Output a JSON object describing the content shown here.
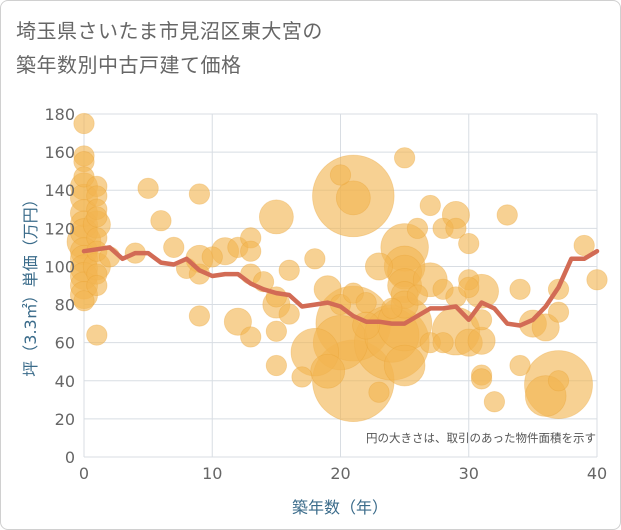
{
  "title": {
    "line1": "埼玉県さいたま市見沼区東大宮の",
    "line2": "築年数別中古戸建て価格"
  },
  "chart_data": {
    "type": "scatter",
    "xlabel": "築年数（年）",
    "ylabel": "坪（3.3㎡）単価（万円）",
    "note": "円の大きさは、取引のあった物件面積を示す",
    "xlim": [
      0,
      40
    ],
    "ylim": [
      0,
      180
    ],
    "x_ticks": [
      "0",
      "10",
      "20",
      "30",
      "40"
    ],
    "y_ticks": [
      "0",
      "20",
      "40",
      "60",
      "80",
      "100",
      "120",
      "140",
      "160",
      "180"
    ],
    "grid": true,
    "colors": {
      "bubble": "#f2b450",
      "bubble_edge": "#e8a030",
      "line": "#d26b55",
      "grid": "#d8dde3"
    },
    "points": [
      {
        "x": 0,
        "y": 175,
        "s": 3
      },
      {
        "x": 0,
        "y": 158,
        "s": 3
      },
      {
        "x": 0,
        "y": 155,
        "s": 3
      },
      {
        "x": 0,
        "y": 147,
        "s": 3
      },
      {
        "x": 0,
        "y": 142,
        "s": 4
      },
      {
        "x": 0,
        "y": 136,
        "s": 4
      },
      {
        "x": 0,
        "y": 128,
        "s": 4
      },
      {
        "x": 0,
        "y": 122,
        "s": 4
      },
      {
        "x": 0,
        "y": 118,
        "s": 4
      },
      {
        "x": 0,
        "y": 113,
        "s": 5
      },
      {
        "x": 0,
        "y": 108,
        "s": 4
      },
      {
        "x": 0,
        "y": 104,
        "s": 4
      },
      {
        "x": 0,
        "y": 99,
        "s": 4
      },
      {
        "x": 0,
        "y": 95,
        "s": 4
      },
      {
        "x": 0,
        "y": 90,
        "s": 4
      },
      {
        "x": 0,
        "y": 85,
        "s": 4
      },
      {
        "x": 0,
        "y": 82,
        "s": 3
      },
      {
        "x": 1,
        "y": 142,
        "s": 3
      },
      {
        "x": 1,
        "y": 137,
        "s": 3
      },
      {
        "x": 1,
        "y": 130,
        "s": 3
      },
      {
        "x": 1,
        "y": 126,
        "s": 3
      },
      {
        "x": 1,
        "y": 122,
        "s": 4
      },
      {
        "x": 1,
        "y": 115,
        "s": 3
      },
      {
        "x": 1,
        "y": 108,
        "s": 3
      },
      {
        "x": 1,
        "y": 100,
        "s": 4
      },
      {
        "x": 1,
        "y": 96,
        "s": 3
      },
      {
        "x": 1,
        "y": 90,
        "s": 3
      },
      {
        "x": 1,
        "y": 64,
        "s": 3
      },
      {
        "x": 2,
        "y": 105,
        "s": 3
      },
      {
        "x": 4,
        "y": 107,
        "s": 3
      },
      {
        "x": 5,
        "y": 141,
        "s": 3
      },
      {
        "x": 6,
        "y": 124,
        "s": 3
      },
      {
        "x": 7,
        "y": 110,
        "s": 3
      },
      {
        "x": 8,
        "y": 99,
        "s": 3
      },
      {
        "x": 9,
        "y": 138,
        "s": 3
      },
      {
        "x": 9,
        "y": 104,
        "s": 4
      },
      {
        "x": 9,
        "y": 96,
        "s": 3
      },
      {
        "x": 9,
        "y": 74,
        "s": 3
      },
      {
        "x": 10,
        "y": 105,
        "s": 3
      },
      {
        "x": 11,
        "y": 108,
        "s": 4
      },
      {
        "x": 12,
        "y": 110,
        "s": 3
      },
      {
        "x": 12,
        "y": 71,
        "s": 4
      },
      {
        "x": 13,
        "y": 115,
        "s": 3
      },
      {
        "x": 13,
        "y": 108,
        "s": 3
      },
      {
        "x": 13,
        "y": 96,
        "s": 3
      },
      {
        "x": 13,
        "y": 63,
        "s": 3
      },
      {
        "x": 14,
        "y": 92,
        "s": 3
      },
      {
        "x": 15,
        "y": 126,
        "s": 5
      },
      {
        "x": 15,
        "y": 84,
        "s": 3
      },
      {
        "x": 15,
        "y": 80,
        "s": 4
      },
      {
        "x": 15,
        "y": 66,
        "s": 3
      },
      {
        "x": 15,
        "y": 48,
        "s": 3
      },
      {
        "x": 16,
        "y": 98,
        "s": 3
      },
      {
        "x": 16,
        "y": 75,
        "s": 3
      },
      {
        "x": 17,
        "y": 42,
        "s": 3
      },
      {
        "x": 18,
        "y": 104,
        "s": 3
      },
      {
        "x": 18,
        "y": 55,
        "s": 7
      },
      {
        "x": 19,
        "y": 88,
        "s": 4
      },
      {
        "x": 19,
        "y": 45,
        "s": 5
      },
      {
        "x": 20,
        "y": 148,
        "s": 3
      },
      {
        "x": 20,
        "y": 80,
        "s": 3
      },
      {
        "x": 20,
        "y": 60,
        "s": 8
      },
      {
        "x": 21,
        "y": 137,
        "s": 12
      },
      {
        "x": 21,
        "y": 136,
        "s": 5
      },
      {
        "x": 21,
        "y": 86,
        "s": 3
      },
      {
        "x": 21,
        "y": 70,
        "s": 11
      },
      {
        "x": 21,
        "y": 40,
        "s": 12
      },
      {
        "x": 22,
        "y": 81,
        "s": 3
      },
      {
        "x": 22,
        "y": 69,
        "s": 4
      },
      {
        "x": 23,
        "y": 100,
        "s": 4
      },
      {
        "x": 23,
        "y": 34,
        "s": 3
      },
      {
        "x": 24,
        "y": 78,
        "s": 3
      },
      {
        "x": 24,
        "y": 64,
        "s": 8
      },
      {
        "x": 24,
        "y": 60,
        "s": 11
      },
      {
        "x": 25,
        "y": 157,
        "s": 3
      },
      {
        "x": 25,
        "y": 110,
        "s": 7
      },
      {
        "x": 25,
        "y": 100,
        "s": 6
      },
      {
        "x": 25,
        "y": 97,
        "s": 5
      },
      {
        "x": 25,
        "y": 90,
        "s": 5
      },
      {
        "x": 25,
        "y": 85,
        "s": 4
      },
      {
        "x": 25,
        "y": 80,
        "s": 4
      },
      {
        "x": 25,
        "y": 70,
        "s": 8
      },
      {
        "x": 25,
        "y": 48,
        "s": 6
      },
      {
        "x": 26,
        "y": 120,
        "s": 3
      },
      {
        "x": 26,
        "y": 85,
        "s": 3
      },
      {
        "x": 27,
        "y": 132,
        "s": 3
      },
      {
        "x": 27,
        "y": 93,
        "s": 5
      },
      {
        "x": 27,
        "y": 60,
        "s": 3
      },
      {
        "x": 28,
        "y": 120,
        "s": 3
      },
      {
        "x": 28,
        "y": 88,
        "s": 3
      },
      {
        "x": 28,
        "y": 60,
        "s": 3
      },
      {
        "x": 29,
        "y": 127,
        "s": 4
      },
      {
        "x": 29,
        "y": 120,
        "s": 3
      },
      {
        "x": 29,
        "y": 84,
        "s": 3
      },
      {
        "x": 29,
        "y": 66,
        "s": 7
      },
      {
        "x": 30,
        "y": 112,
        "s": 3
      },
      {
        "x": 30,
        "y": 93,
        "s": 3
      },
      {
        "x": 30,
        "y": 89,
        "s": 3
      },
      {
        "x": 30,
        "y": 60,
        "s": 4
      },
      {
        "x": 31,
        "y": 87,
        "s": 5
      },
      {
        "x": 31,
        "y": 72,
        "s": 3
      },
      {
        "x": 31,
        "y": 61,
        "s": 4
      },
      {
        "x": 31,
        "y": 43,
        "s": 3
      },
      {
        "x": 31,
        "y": 41,
        "s": 3
      },
      {
        "x": 32,
        "y": 29,
        "s": 3
      },
      {
        "x": 33,
        "y": 127,
        "s": 3
      },
      {
        "x": 34,
        "y": 88,
        "s": 3
      },
      {
        "x": 34,
        "y": 48,
        "s": 3
      },
      {
        "x": 35,
        "y": 70,
        "s": 4
      },
      {
        "x": 36,
        "y": 68,
        "s": 4
      },
      {
        "x": 36,
        "y": 32,
        "s": 6
      },
      {
        "x": 37,
        "y": 88,
        "s": 3
      },
      {
        "x": 37,
        "y": 76,
        "s": 3
      },
      {
        "x": 37,
        "y": 38,
        "s": 10
      },
      {
        "x": 37,
        "y": 40,
        "s": 3
      },
      {
        "x": 39,
        "y": 111,
        "s": 3
      },
      {
        "x": 40,
        "y": 93,
        "s": 3
      }
    ],
    "trend": {
      "x": [
        0,
        1,
        2,
        3,
        4,
        5,
        6,
        7,
        8,
        9,
        10,
        11,
        12,
        13,
        14,
        15,
        16,
        17,
        18,
        19,
        20,
        21,
        22,
        23,
        24,
        25,
        26,
        27,
        28,
        29,
        30,
        31,
        32,
        33,
        34,
        35,
        36,
        37,
        38,
        39,
        40
      ],
      "y": [
        108,
        109,
        110,
        104,
        107,
        107,
        102,
        101,
        104,
        98,
        95,
        96,
        96,
        91,
        88,
        86,
        85,
        79,
        80,
        81,
        79,
        74,
        71,
        71,
        70,
        70,
        74,
        78,
        78,
        79,
        72,
        81,
        78,
        70,
        69,
        72,
        79,
        89,
        104,
        104,
        108
      ]
    }
  }
}
